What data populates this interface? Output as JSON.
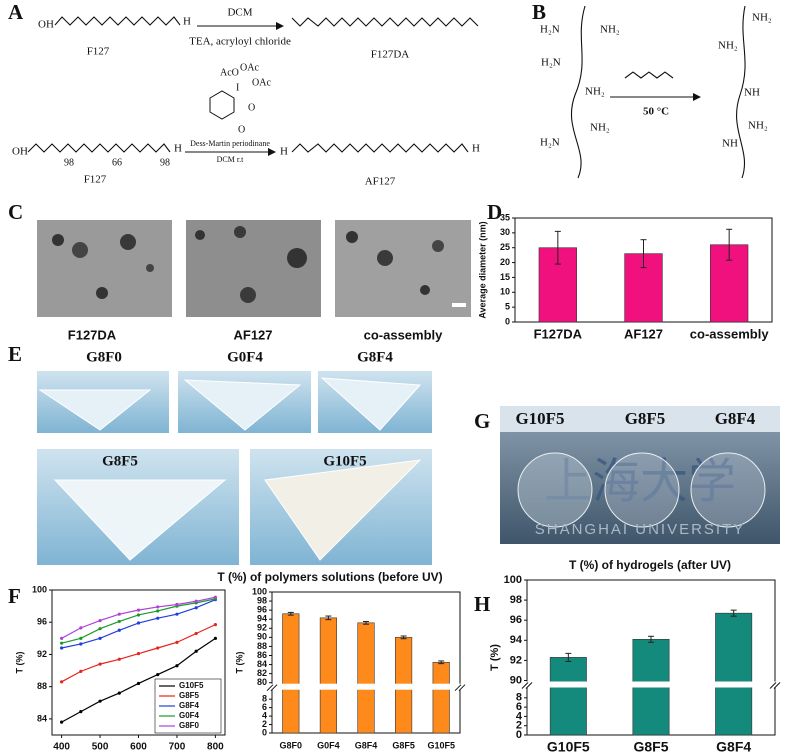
{
  "panel_labels": [
    "A",
    "B",
    "C",
    "D",
    "E",
    "F",
    "G",
    "H"
  ],
  "scheme_a": {
    "row1": {
      "start_end_oh": "OH",
      "start_end_h": "H",
      "start_name": "F127",
      "reagent": "DCM",
      "conditions": "TEA, acryloyl chloride",
      "product_name": "F127DA"
    },
    "row2": {
      "start_end_oh": "OH",
      "start_end_h": "H",
      "subscripts": [
        "98",
        "66",
        "98"
      ],
      "start_name": "F127",
      "reagent_groups": [
        "AcO",
        "OAc",
        "OAc",
        "I",
        "O",
        "O"
      ],
      "reagent": "Dess-Martin periodinane",
      "conditions": "DCM  r.t",
      "product_end_h": [
        "H",
        "H"
      ],
      "product_name": "AF127"
    }
  },
  "scheme_b": {
    "left_groups": [
      "H₂N",
      "NH₂",
      "H₂N",
      "NH₂",
      "NH₂",
      "H₂N"
    ],
    "right_groups": [
      "NH₂",
      "NH₂",
      "NH",
      "NH₂",
      "NH"
    ],
    "conditions": "50 °C"
  },
  "tem_images": {
    "labels": [
      "F127DA",
      "AF127",
      "co-assembly"
    ]
  },
  "vial_photos": {
    "labels": [
      "G8F0",
      "G0F4",
      "G8F4",
      "G8F5",
      "G10F5"
    ]
  },
  "hydrogel_photo": {
    "labels": [
      "G10F5",
      "G8F5",
      "G8F4"
    ],
    "logo_text": "上海大学",
    "logo_subtext": "SHANGHAI UNIVERSITY"
  },
  "chart_data": [
    {
      "type": "bar",
      "ylabel": "Average diameter (nm)",
      "categories": [
        "F127DA",
        "AF127",
        "co-assembly"
      ],
      "values": [
        25,
        23,
        26
      ],
      "errors": [
        5.5,
        4.7,
        5.2
      ],
      "color": "#f0107e",
      "ylim": [
        0,
        35
      ],
      "yticks": [
        0,
        5,
        10,
        15,
        20,
        25,
        30,
        35
      ]
    },
    {
      "type": "line",
      "ylabel": "T (%)",
      "x": [
        400,
        450,
        500,
        550,
        600,
        650,
        700,
        750,
        800
      ],
      "series": [
        {
          "name": "G10F5",
          "color": "#000000",
          "values": [
            83.6,
            84.9,
            86.2,
            87.2,
            88.4,
            89.5,
            90.6,
            92.4,
            94.0
          ]
        },
        {
          "name": "G8F5",
          "color": "#e8231c",
          "values": [
            88.6,
            89.9,
            90.8,
            91.4,
            92.1,
            92.8,
            93.5,
            94.6,
            95.7
          ]
        },
        {
          "name": "G8F4",
          "color": "#1f3fe0",
          "values": [
            92.8,
            93.3,
            94.0,
            95.0,
            95.9,
            96.5,
            97.0,
            97.8,
            98.8
          ]
        },
        {
          "name": "G0F4",
          "color": "#1a9a2a",
          "values": [
            93.4,
            94.0,
            95.2,
            96.1,
            96.9,
            97.4,
            98.0,
            98.4,
            98.9
          ]
        },
        {
          "name": "G8F0",
          "color": "#b040d8",
          "values": [
            94.0,
            95.3,
            96.2,
            97.0,
            97.5,
            97.9,
            98.2,
            98.6,
            99.1
          ]
        }
      ],
      "xlim": [
        375,
        825
      ],
      "xticks": [
        400,
        500,
        600,
        700,
        800
      ],
      "ylim": [
        82,
        100
      ],
      "yticks": [
        84,
        88,
        92,
        96,
        100
      ],
      "legend": "lower right"
    },
    {
      "type": "bar",
      "title": "T (%) of polymers solutions (before UV)",
      "ylabel": "T (%)",
      "categories": [
        "G8F0",
        "G0F4",
        "G8F4",
        "G8F5",
        "G10F5"
      ],
      "values": [
        95.2,
        94.3,
        93.2,
        90.0,
        84.5
      ],
      "errors": [
        0.3,
        0.4,
        0.3,
        0.3,
        0.3
      ],
      "color": "#ff8a1c",
      "ylim": [
        0,
        100
      ],
      "ybreak": [
        10,
        80
      ],
      "yticks": [
        0,
        2,
        4,
        6,
        8,
        80,
        82,
        84,
        86,
        88,
        90,
        92,
        94,
        96,
        98,
        100
      ]
    },
    {
      "type": "bar",
      "title": "T (%) of hydrogels (after UV)",
      "ylabel": "T (%)",
      "categories": [
        "G10F5",
        "G8F5",
        "G8F4"
      ],
      "values": [
        92.3,
        94.1,
        96.7
      ],
      "errors": [
        0.4,
        0.3,
        0.3
      ],
      "color": "#138a7c",
      "ylim": [
        0,
        100
      ],
      "ybreak": [
        10,
        90
      ],
      "yticks": [
        0,
        2,
        4,
        6,
        8,
        90,
        92,
        94,
        96,
        98,
        100
      ]
    }
  ]
}
